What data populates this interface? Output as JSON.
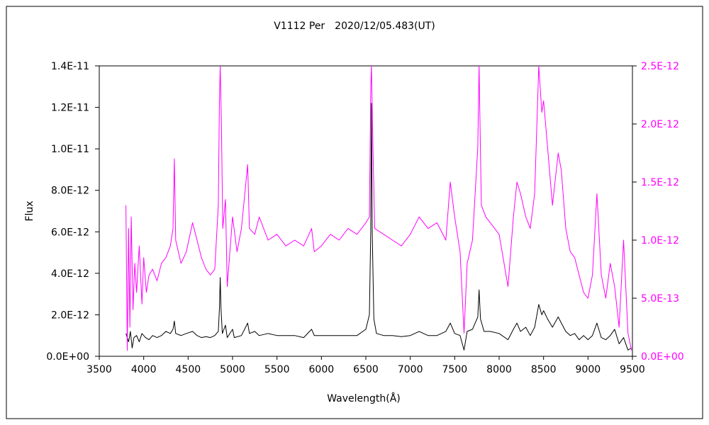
{
  "chart_data": {
    "type": "line",
    "title": "V1112 Per　2020/12/05.483(UT)",
    "xlabel": "Wavelength(Å)",
    "ylabel_left": "Flux",
    "ylabel_right": "",
    "xlim": [
      3500,
      9500
    ],
    "ylim_left": [
      0,
      1.4e-11
    ],
    "ylim_right": [
      0,
      2.5e-12
    ],
    "x_ticks": [
      "3500",
      "4000",
      "4500",
      "5000",
      "5500",
      "6000",
      "6500",
      "7000",
      "7500",
      "8000",
      "8500",
      "9000",
      "9500"
    ],
    "x_tick_values": [
      3500,
      4000,
      4500,
      5000,
      5500,
      6000,
      6500,
      7000,
      7500,
      8000,
      8500,
      9000,
      9500
    ],
    "y_left_ticks": [
      "0.0E+00",
      "2.0E-12",
      "4.0E-12",
      "6.0E-12",
      "8.0E-12",
      "1.0E-11",
      "1.2E-11",
      "1.4E-11"
    ],
    "y_left_tick_values": [
      0,
      2e-12,
      4e-12,
      6e-12,
      8e-12,
      1e-11,
      1.2e-11,
      1.4e-11
    ],
    "y_right_ticks": [
      "0.0E+00",
      "5.0E-13",
      "1.0E-12",
      "1.5E-12",
      "2.0E-12",
      "2.5E-12"
    ],
    "y_right_tick_values": [
      0,
      5e-13,
      1e-12,
      1.5e-12,
      2e-12,
      2.5e-12
    ],
    "grid": false,
    "series": [
      {
        "name": "",
        "axis": "left",
        "color": "#000000",
        "points": [
          [
            3800,
            1.1e-12
          ],
          [
            3830,
            7e-13
          ],
          [
            3850,
            1.2e-12
          ],
          [
            3870,
            4e-13
          ],
          [
            3890,
            9e-13
          ],
          [
            3920,
            1e-12
          ],
          [
            3950,
            7e-13
          ],
          [
            3980,
            1.1e-12
          ],
          [
            4020,
            9e-13
          ],
          [
            4060,
            8e-13
          ],
          [
            4100,
            1e-12
          ],
          [
            4150,
            9e-13
          ],
          [
            4200,
            1e-12
          ],
          [
            4250,
            1.2e-12
          ],
          [
            4300,
            1.1e-12
          ],
          [
            4330,
            1.3e-12
          ],
          [
            4345,
            1.7e-12
          ],
          [
            4360,
            1.1e-12
          ],
          [
            4420,
            1e-12
          ],
          [
            4480,
            1.1e-12
          ],
          [
            4550,
            1.2e-12
          ],
          [
            4600,
            1e-12
          ],
          [
            4650,
            9e-13
          ],
          [
            4700,
            9.5e-13
          ],
          [
            4750,
            9e-13
          ],
          [
            4800,
            1e-12
          ],
          [
            4840,
            1.2e-12
          ],
          [
            4852,
            2.3e-12
          ],
          [
            4861,
            3.8e-12
          ],
          [
            4870,
            2.3e-12
          ],
          [
            4885,
            1.1e-12
          ],
          [
            4920,
            1.5e-12
          ],
          [
            4940,
            9e-13
          ],
          [
            5000,
            1.3e-12
          ],
          [
            5020,
            9e-13
          ],
          [
            5100,
            1e-12
          ],
          [
            5170,
            1.6e-12
          ],
          [
            5190,
            1.1e-12
          ],
          [
            5250,
            1.2e-12
          ],
          [
            5300,
            1e-12
          ],
          [
            5400,
            1.1e-12
          ],
          [
            5500,
            1e-12
          ],
          [
            5600,
            1e-12
          ],
          [
            5700,
            1e-12
          ],
          [
            5800,
            9e-13
          ],
          [
            5890,
            1.3e-12
          ],
          [
            5920,
            1e-12
          ],
          [
            6000,
            1e-12
          ],
          [
            6100,
            1e-12
          ],
          [
            6200,
            1e-12
          ],
          [
            6300,
            1e-12
          ],
          [
            6400,
            1e-12
          ],
          [
            6500,
            1.3e-12
          ],
          [
            6540,
            2e-12
          ],
          [
            6555,
            6e-12
          ],
          [
            6563,
            1.22e-11
          ],
          [
            6572,
            6e-12
          ],
          [
            6590,
            1.8e-12
          ],
          [
            6620,
            1.1e-12
          ],
          [
            6700,
            1e-12
          ],
          [
            6800,
            1e-12
          ],
          [
            6900,
            9.5e-13
          ],
          [
            7000,
            1e-12
          ],
          [
            7100,
            1.2e-12
          ],
          [
            7200,
            1e-12
          ],
          [
            7300,
            1e-12
          ],
          [
            7400,
            1.2e-12
          ],
          [
            7450,
            1.6e-12
          ],
          [
            7500,
            1.1e-12
          ],
          [
            7560,
            1e-12
          ],
          [
            7605,
            3e-13
          ],
          [
            7640,
            1.2e-12
          ],
          [
            7700,
            1.3e-12
          ],
          [
            7760,
            1.9e-12
          ],
          [
            7774,
            3.2e-12
          ],
          [
            7790,
            1.8e-12
          ],
          [
            7830,
            1.2e-12
          ],
          [
            7900,
            1.2e-12
          ],
          [
            8000,
            1.1e-12
          ],
          [
            8100,
            8e-13
          ],
          [
            8160,
            1.3e-12
          ],
          [
            8200,
            1.6e-12
          ],
          [
            8240,
            1.2e-12
          ],
          [
            8300,
            1.4e-12
          ],
          [
            8350,
            1e-12
          ],
          [
            8400,
            1.4e-12
          ],
          [
            8446,
            2.5e-12
          ],
          [
            8480,
            2e-12
          ],
          [
            8500,
            2.2e-12
          ],
          [
            8545,
            1.8e-12
          ],
          [
            8600,
            1.4e-12
          ],
          [
            8665,
            1.9e-12
          ],
          [
            8700,
            1.6e-12
          ],
          [
            8750,
            1.2e-12
          ],
          [
            8800,
            1e-12
          ],
          [
            8850,
            1.1e-12
          ],
          [
            8900,
            8e-13
          ],
          [
            8950,
            1e-12
          ],
          [
            9000,
            8e-13
          ],
          [
            9050,
            1e-12
          ],
          [
            9100,
            1.6e-12
          ],
          [
            9150,
            9e-13
          ],
          [
            9200,
            8e-13
          ],
          [
            9250,
            1e-12
          ],
          [
            9300,
            1.3e-12
          ],
          [
            9350,
            6e-13
          ],
          [
            9400,
            9e-13
          ],
          [
            9450,
            3e-13
          ],
          [
            9490,
            4e-13
          ]
        ]
      },
      {
        "name": "",
        "axis": "right",
        "color": "#ff00ff",
        "points": [
          [
            3800,
            1.3e-12
          ],
          [
            3815,
            5e-14
          ],
          [
            3830,
            1.1e-12
          ],
          [
            3845,
            2.5e-13
          ],
          [
            3860,
            1.2e-12
          ],
          [
            3880,
            4e-13
          ],
          [
            3900,
            8e-13
          ],
          [
            3920,
            5.5e-13
          ],
          [
            3950,
            9.5e-13
          ],
          [
            3980,
            4.5e-13
          ],
          [
            4000,
            8.5e-13
          ],
          [
            4030,
            5.5e-13
          ],
          [
            4060,
            7e-13
          ],
          [
            4100,
            7.5e-13
          ],
          [
            4150,
            6.5e-13
          ],
          [
            4200,
            8e-13
          ],
          [
            4250,
            8.5e-13
          ],
          [
            4300,
            9.5e-13
          ],
          [
            4330,
            1.1e-12
          ],
          [
            4345,
            1.7e-12
          ],
          [
            4360,
            1e-12
          ],
          [
            4420,
            8e-13
          ],
          [
            4480,
            9e-13
          ],
          [
            4550,
            1.15e-12
          ],
          [
            4600,
            1e-12
          ],
          [
            4650,
            8.5e-13
          ],
          [
            4700,
            7.5e-13
          ],
          [
            4750,
            7e-13
          ],
          [
            4800,
            7.5e-13
          ],
          [
            4840,
            1.3e-12
          ],
          [
            4852,
            2.2e-12
          ],
          [
            4861,
            2.5e-12
          ],
          [
            4875,
            2e-12
          ],
          [
            4890,
            1.1e-12
          ],
          [
            4920,
            1.35e-12
          ],
          [
            4940,
            6e-13
          ],
          [
            5000,
            1.2e-12
          ],
          [
            5050,
            9e-13
          ],
          [
            5100,
            1.1e-12
          ],
          [
            5170,
            1.65e-12
          ],
          [
            5190,
            1.1e-12
          ],
          [
            5250,
            1.05e-12
          ],
          [
            5300,
            1.2e-12
          ],
          [
            5400,
            1e-12
          ],
          [
            5500,
            1.05e-12
          ],
          [
            5600,
            9.5e-13
          ],
          [
            5700,
            1e-12
          ],
          [
            5800,
            9.5e-13
          ],
          [
            5890,
            1.1e-12
          ],
          [
            5920,
            9e-13
          ],
          [
            6000,
            9.5e-13
          ],
          [
            6100,
            1.05e-12
          ],
          [
            6200,
            1e-12
          ],
          [
            6300,
            1.1e-12
          ],
          [
            6400,
            1.05e-12
          ],
          [
            6500,
            1.15e-12
          ],
          [
            6540,
            1.2e-12
          ],
          [
            6555,
            2.3e-12
          ],
          [
            6563,
            2.5e-12
          ],
          [
            6580,
            1.8e-12
          ],
          [
            6600,
            1.1e-12
          ],
          [
            6700,
            1.05e-12
          ],
          [
            6800,
            1e-12
          ],
          [
            6900,
            9.5e-13
          ],
          [
            7000,
            1.05e-12
          ],
          [
            7100,
            1.2e-12
          ],
          [
            7200,
            1.1e-12
          ],
          [
            7300,
            1.15e-12
          ],
          [
            7400,
            1e-12
          ],
          [
            7450,
            1.5e-12
          ],
          [
            7500,
            1.2e-12
          ],
          [
            7560,
            9e-13
          ],
          [
            7605,
            2e-13
          ],
          [
            7640,
            8e-13
          ],
          [
            7700,
            1e-12
          ],
          [
            7760,
            1.8e-12
          ],
          [
            7774,
            2.5e-12
          ],
          [
            7800,
            1.3e-12
          ],
          [
            7850,
            1.2e-12
          ],
          [
            7900,
            1.15e-12
          ],
          [
            8000,
            1.05e-12
          ],
          [
            8100,
            6e-13
          ],
          [
            8160,
            1.2e-12
          ],
          [
            8200,
            1.5e-12
          ],
          [
            8240,
            1.4e-12
          ],
          [
            8300,
            1.2e-12
          ],
          [
            8350,
            1.1e-12
          ],
          [
            8400,
            1.4e-12
          ],
          [
            8446,
            2.5e-12
          ],
          [
            8480,
            2.1e-12
          ],
          [
            8500,
            2.2e-12
          ],
          [
            8545,
            1.8e-12
          ],
          [
            8600,
            1.3e-12
          ],
          [
            8665,
            1.75e-12
          ],
          [
            8700,
            1.6e-12
          ],
          [
            8750,
            1.1e-12
          ],
          [
            8800,
            9e-13
          ],
          [
            8850,
            8.5e-13
          ],
          [
            8900,
            7e-13
          ],
          [
            8950,
            5.5e-13
          ],
          [
            9000,
            5e-13
          ],
          [
            9050,
            7e-13
          ],
          [
            9100,
            1.4e-12
          ],
          [
            9150,
            7e-13
          ],
          [
            9200,
            5e-13
          ],
          [
            9250,
            8e-13
          ],
          [
            9300,
            6e-13
          ],
          [
            9350,
            2.5e-13
          ],
          [
            9400,
            1e-12
          ],
          [
            9450,
            2e-13
          ],
          [
            9490,
            5e-14
          ]
        ]
      }
    ]
  }
}
